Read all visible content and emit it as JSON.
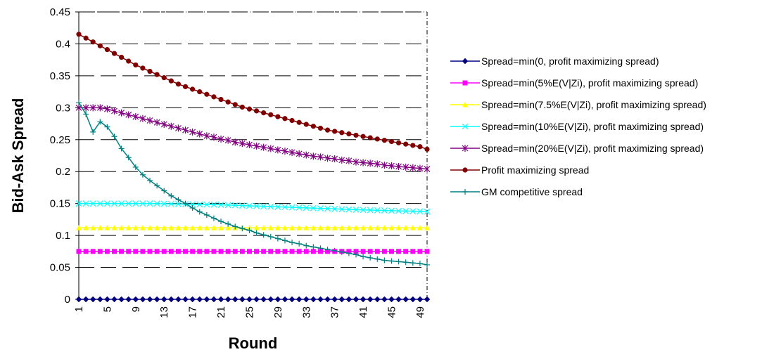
{
  "chart_data": {
    "type": "line",
    "title": "",
    "xlabel": "Round",
    "ylabel": "Bid-Ask Spread",
    "x": [
      1,
      2,
      3,
      4,
      5,
      6,
      7,
      8,
      9,
      10,
      11,
      12,
      13,
      14,
      15,
      16,
      17,
      18,
      19,
      20,
      21,
      22,
      23,
      24,
      25,
      26,
      27,
      28,
      29,
      30,
      31,
      32,
      33,
      34,
      35,
      36,
      37,
      38,
      39,
      40,
      41,
      42,
      43,
      44,
      45,
      46,
      47,
      48,
      49,
      50
    ],
    "x_tick_labels": [
      "1",
      "5",
      "9",
      "13",
      "17",
      "21",
      "25",
      "29",
      "33",
      "37",
      "41",
      "45",
      "49"
    ],
    "y_tick_labels": [
      "0",
      "0.05",
      "0.1",
      "0.15",
      "0.2",
      "0.25",
      "0.3",
      "0.35",
      "0.4",
      "0.45"
    ],
    "xlim": [
      1,
      50
    ],
    "ylim": [
      0,
      0.45
    ],
    "y_step": 0.05,
    "grid": "horizontal dashed",
    "legend_position": "right",
    "series": [
      {
        "name": "Spread=min(0, profit maximizing spread)",
        "color": "#000080",
        "marker": "diamond",
        "values": [
          0,
          0,
          0,
          0,
          0,
          0,
          0,
          0,
          0,
          0,
          0,
          0,
          0,
          0,
          0,
          0,
          0,
          0,
          0,
          0,
          0,
          0,
          0,
          0,
          0,
          0,
          0,
          0,
          0,
          0,
          0,
          0,
          0,
          0,
          0,
          0,
          0,
          0,
          0,
          0,
          0,
          0,
          0,
          0,
          0,
          0,
          0,
          0,
          0,
          0
        ]
      },
      {
        "name": "Spread=min(5%E(V|Zi), profit maximizing spread)",
        "color": "#FF00FF",
        "marker": "square",
        "values": [
          0.075,
          0.075,
          0.075,
          0.075,
          0.075,
          0.075,
          0.075,
          0.075,
          0.075,
          0.075,
          0.075,
          0.075,
          0.075,
          0.075,
          0.075,
          0.075,
          0.075,
          0.075,
          0.075,
          0.075,
          0.075,
          0.075,
          0.075,
          0.075,
          0.075,
          0.075,
          0.075,
          0.075,
          0.075,
          0.075,
          0.075,
          0.075,
          0.075,
          0.075,
          0.075,
          0.075,
          0.075,
          0.075,
          0.075,
          0.075,
          0.075,
          0.075,
          0.075,
          0.075,
          0.075,
          0.075,
          0.075,
          0.075,
          0.075,
          0.075
        ]
      },
      {
        "name": "Spread=min(7.5%E(V|Zi), profit maximizing spread)",
        "color": "#FFFF00",
        "marker": "triangle",
        "values": [
          0.112,
          0.112,
          0.112,
          0.112,
          0.112,
          0.112,
          0.112,
          0.112,
          0.112,
          0.112,
          0.112,
          0.112,
          0.112,
          0.112,
          0.112,
          0.112,
          0.112,
          0.112,
          0.112,
          0.112,
          0.112,
          0.112,
          0.112,
          0.112,
          0.112,
          0.112,
          0.112,
          0.112,
          0.112,
          0.112,
          0.112,
          0.112,
          0.112,
          0.112,
          0.112,
          0.112,
          0.112,
          0.112,
          0.112,
          0.112,
          0.112,
          0.112,
          0.112,
          0.112,
          0.112,
          0.112,
          0.112,
          0.112,
          0.112,
          0.112
        ]
      },
      {
        "name": "Spread=min(10%E(V|Zi), profit maximizing spread)",
        "color": "#00FFFF",
        "marker": "x",
        "values": [
          0.15,
          0.15,
          0.15,
          0.15,
          0.15,
          0.15,
          0.15,
          0.15,
          0.15,
          0.15,
          0.15,
          0.1498,
          0.1496,
          0.1494,
          0.1492,
          0.149,
          0.1488,
          0.1486,
          0.1484,
          0.1482,
          0.148,
          0.1476,
          0.1472,
          0.1468,
          0.1464,
          0.146,
          0.1456,
          0.1452,
          0.1448,
          0.1444,
          0.144,
          0.1436,
          0.1432,
          0.1428,
          0.1424,
          0.142,
          0.1416,
          0.1412,
          0.1408,
          0.1404,
          0.14,
          0.1397,
          0.1394,
          0.1391,
          0.1388,
          0.1385,
          0.1382,
          0.1379,
          0.1376,
          0.1373
        ]
      },
      {
        "name": "Spread=min(20%E(V|Zi), profit maximizing spread)",
        "color": "#800080",
        "marker": "star",
        "values": [
          0.3,
          0.3,
          0.3,
          0.3,
          0.298,
          0.295,
          0.292,
          0.289,
          0.286,
          0.283,
          0.28,
          0.277,
          0.274,
          0.271,
          0.268,
          0.265,
          0.262,
          0.259,
          0.256,
          0.254,
          0.251,
          0.249,
          0.246,
          0.244,
          0.242,
          0.24,
          0.238,
          0.236,
          0.234,
          0.232,
          0.23,
          0.228,
          0.226,
          0.224,
          0.223,
          0.221,
          0.22,
          0.218,
          0.217,
          0.215,
          0.214,
          0.213,
          0.212,
          0.21,
          0.209,
          0.208,
          0.207,
          0.206,
          0.205,
          0.204
        ]
      },
      {
        "name": "Profit maximizing spread",
        "color": "#800000",
        "marker": "circle",
        "values": [
          0.415,
          0.409,
          0.403,
          0.397,
          0.391,
          0.385,
          0.379,
          0.373,
          0.367,
          0.362,
          0.357,
          0.352,
          0.347,
          0.342,
          0.337,
          0.333,
          0.329,
          0.325,
          0.321,
          0.317,
          0.313,
          0.309,
          0.305,
          0.301,
          0.298,
          0.295,
          0.292,
          0.289,
          0.286,
          0.283,
          0.28,
          0.277,
          0.274,
          0.271,
          0.268,
          0.265,
          0.263,
          0.261,
          0.259,
          0.257,
          0.255,
          0.253,
          0.251,
          0.249,
          0.247,
          0.245,
          0.243,
          0.241,
          0.239,
          0.235
        ]
      },
      {
        "name": "GM competitive spread",
        "color": "#008080",
        "marker": "plus",
        "values": [
          0.308,
          0.29,
          0.262,
          0.278,
          0.27,
          0.255,
          0.236,
          0.222,
          0.207,
          0.195,
          0.186,
          0.178,
          0.17,
          0.162,
          0.156,
          0.15,
          0.143,
          0.137,
          0.132,
          0.127,
          0.122,
          0.118,
          0.114,
          0.111,
          0.108,
          0.104,
          0.101,
          0.098,
          0.095,
          0.092,
          0.089,
          0.087,
          0.084,
          0.082,
          0.08,
          0.078,
          0.076,
          0.074,
          0.072,
          0.07,
          0.067,
          0.065,
          0.063,
          0.061,
          0.06,
          0.059,
          0.058,
          0.057,
          0.056,
          0.054
        ]
      }
    ]
  }
}
